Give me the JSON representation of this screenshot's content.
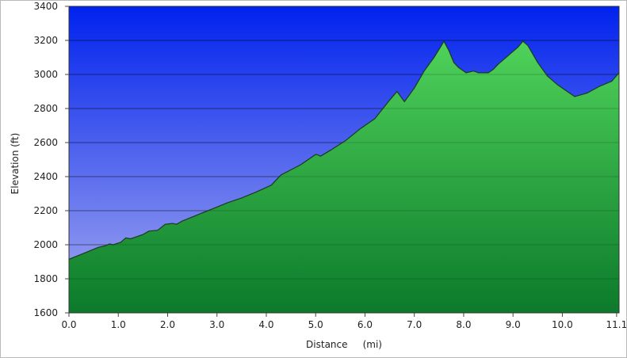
{
  "chart_data": {
    "type": "area",
    "xlabel": "Distance     (mi)",
    "ylabel": "Elevation (ft)",
    "xlim": [
      0,
      11.15
    ],
    "ylim": [
      1600,
      3400
    ],
    "x_ticks": [
      "0.0",
      "1.0",
      "2.0",
      "3.0",
      "4.0",
      "5.0",
      "6.0",
      "7.0",
      "8.0",
      "9.0",
      "10.0",
      "11.1"
    ],
    "y_ticks": [
      "1600",
      "1800",
      "2000",
      "2200",
      "2400",
      "2600",
      "2800",
      "3000",
      "3200",
      "3400"
    ],
    "grid": true,
    "colors": {
      "sky_top": "#0022ee",
      "sky_bottom": "#a7acef",
      "terrain_top": "#4fd25a",
      "terrain_bottom": "#0c7a2b",
      "outline": "#1d3a1d",
      "grid": "#000000"
    },
    "series": [
      {
        "x": [
          0.0,
          0.3,
          0.6,
          0.75,
          0.82,
          0.9,
          1.05,
          1.15,
          1.25,
          1.5,
          1.62,
          1.8,
          1.95,
          2.1,
          2.18,
          2.3,
          2.6,
          2.9,
          3.2,
          3.5,
          3.8,
          4.1,
          4.3,
          4.5,
          4.7,
          5.0,
          5.02,
          5.1,
          5.3,
          5.6,
          5.9,
          6.2,
          6.5,
          6.65,
          6.8,
          7.0,
          7.2,
          7.4,
          7.55,
          7.6,
          7.7,
          7.8,
          7.9,
          8.05,
          8.2,
          8.3,
          8.5,
          8.6,
          8.7,
          8.9,
          9.1,
          9.2,
          9.3,
          9.5,
          9.7,
          9.9,
          10.1,
          10.25,
          10.5,
          10.75,
          11.0,
          11.15
        ],
        "y": [
          1915,
          1950,
          1985,
          1995,
          2005,
          2000,
          2015,
          2040,
          2035,
          2060,
          2080,
          2085,
          2120,
          2125,
          2120,
          2140,
          2175,
          2210,
          2245,
          2275,
          2310,
          2350,
          2410,
          2440,
          2470,
          2530,
          2530,
          2520,
          2555,
          2610,
          2680,
          2740,
          2850,
          2900,
          2840,
          2920,
          3020,
          3100,
          3170,
          3195,
          3140,
          3070,
          3040,
          3010,
          3020,
          3010,
          3010,
          3030,
          3060,
          3110,
          3160,
          3195,
          3170,
          3070,
          2990,
          2940,
          2900,
          2870,
          2890,
          2930,
          2960,
          3010
        ]
      }
    ]
  }
}
